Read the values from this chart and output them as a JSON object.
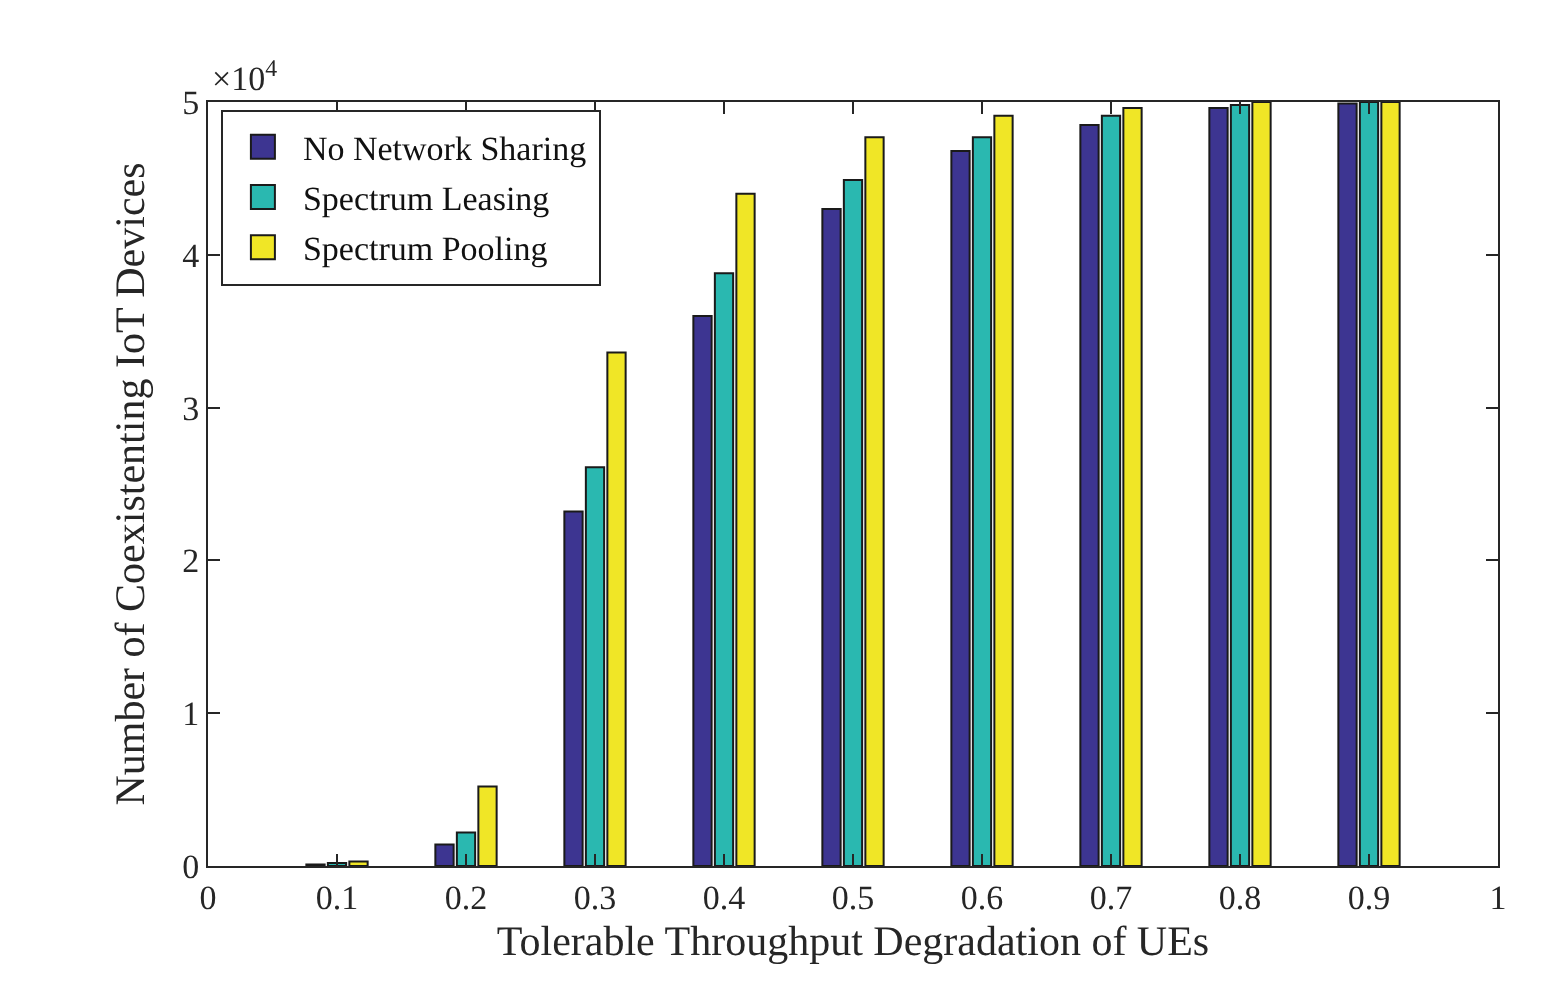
{
  "chart_data": {
    "type": "bar",
    "xlabel": "Tolerable Throughput Degradation of UEs",
    "ylabel": "Number of Coexistenting IoT Devices",
    "x": [
      0.1,
      0.2,
      0.3,
      0.4,
      0.5,
      0.6,
      0.7,
      0.8,
      0.9
    ],
    "series": [
      {
        "name": "No Network Sharing",
        "color": "#3d3591",
        "values": [
          0.01,
          0.14,
          2.32,
          3.6,
          4.3,
          4.68,
          4.85,
          4.96,
          4.99
        ]
      },
      {
        "name": "Spectrum Leasing",
        "color": "#2ab8b0",
        "values": [
          0.02,
          0.22,
          2.61,
          3.88,
          4.49,
          4.77,
          4.91,
          4.98,
          5.0
        ]
      },
      {
        "name": "Spectrum Pooling",
        "color": "#f0e626",
        "values": [
          0.03,
          0.52,
          3.36,
          4.4,
          4.77,
          4.91,
          4.96,
          5.0,
          5.0
        ]
      }
    ],
    "xlim": [
      0,
      1
    ],
    "xticks": [
      0,
      0.1,
      0.2,
      0.3,
      0.4,
      0.5,
      0.6,
      0.7,
      0.8,
      0.9,
      1
    ],
    "ylim": [
      0,
      5
    ],
    "yticks": [
      0,
      1,
      2,
      3,
      4,
      5
    ],
    "annotations": [
      "×10$^{4}$"
    ],
    "legend": "top left"
  }
}
